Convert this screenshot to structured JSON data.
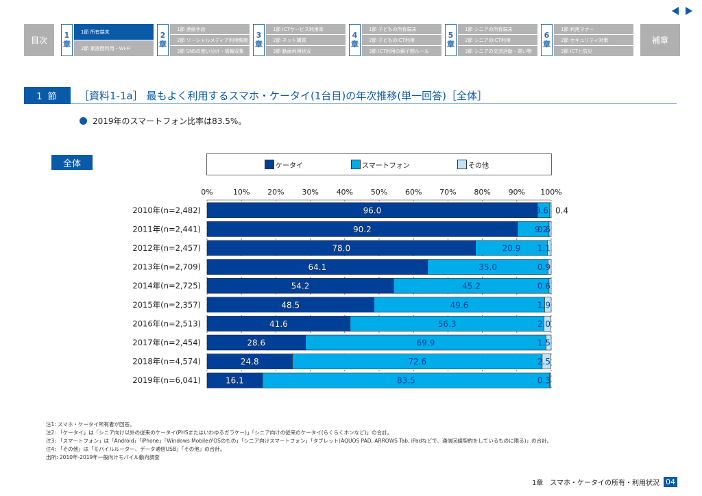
{
  "nav": {
    "toc_label": "目次",
    "appendix_label": "補章",
    "prev_label": "previous-page",
    "next_label": "next-page",
    "chapters": [
      {
        "num": "1",
        "kanji": "章",
        "sections": [
          "1節 所有端末",
          "2節 家族間利用・Wi-Fi"
        ],
        "active": 0
      },
      {
        "num": "2",
        "kanji": "章",
        "sections": [
          "1節 連絡手段",
          "2節 ソーシャルメディア利用頻度",
          "3節 SNSの使い分け・情報収集"
        ]
      },
      {
        "num": "3",
        "kanji": "章",
        "sections": [
          "1節 ICTサービス利用率",
          "2節 ネット購買",
          "3節 動画利用状況"
        ]
      },
      {
        "num": "4",
        "kanji": "章",
        "sections": [
          "1節 子どもの所有端末",
          "2節 子どものICT利用",
          "3節 ICT利用の親子間ルール"
        ]
      },
      {
        "num": "5",
        "kanji": "章",
        "sections": [
          "1節 シニアの所有端末",
          "2節 シニアのICT利用",
          "3節 シニアの交流活動・買い物"
        ]
      },
      {
        "num": "6",
        "kanji": "章",
        "sections": [
          "1節 利用マナー",
          "2節 セキュリティ対策",
          "3節 ICTと防災"
        ]
      }
    ]
  },
  "header": {
    "section_badge": "1 節",
    "title": "［資料1-1a］ 最もよく利用するスマホ・ケータイ(1台目)の年次推移(単一回答)［全体］"
  },
  "bullet": "2019年のスマートフォン比率は83.5%。",
  "group_label": "全体",
  "chart_data": {
    "type": "bar",
    "orientation": "horizontal",
    "stacked": "100%",
    "title": "最もよく利用するスマホ・ケータイ(1台目)の年次推移(単一回答)［全体］",
    "xlabel": "",
    "ylabel": "",
    "xlim": [
      0,
      100
    ],
    "x_ticks": [
      "0%",
      "10%",
      "20%",
      "30%",
      "40%",
      "50%",
      "60%",
      "70%",
      "80%",
      "90%",
      "100%"
    ],
    "legend_position": "top",
    "categories": [
      "2010年(n=2,482)",
      "2011年(n=2,441)",
      "2012年(n=2,457)",
      "2013年(n=2,709)",
      "2014年(n=2,725)",
      "2015年(n=2,357)",
      "2016年(n=2,513)",
      "2017年(n=2,454)",
      "2018年(n=4,574)",
      "2019年(n=6,041)"
    ],
    "series": [
      {
        "name": "ケータイ",
        "color": "#003f98",
        "values": [
          96.0,
          90.2,
          78.0,
          64.1,
          54.2,
          48.5,
          41.6,
          28.6,
          24.8,
          16.1
        ]
      },
      {
        "name": "スマートフォン",
        "color": "#00ace9",
        "values": [
          3.6,
          9.2,
          20.9,
          35.0,
          45.2,
          49.6,
          56.3,
          69.9,
          72.6,
          83.5
        ]
      },
      {
        "name": "その他",
        "color": "#bfe3f8",
        "values": [
          0.4,
          0.6,
          1.1,
          0.9,
          0.6,
          1.9,
          2.0,
          1.5,
          2.5,
          0.3
        ]
      }
    ]
  },
  "notes": [
    "注1: スマホ・ケータイ所有者が回答。",
    "注2: 「ケータイ」は「シニア向け以外の従来のケータイ(PHSまたはいわゆるガラケー)」「シニア向けの従来のケータイ(らくらくホンなど)」の合計。",
    "注3: 「スマートフォン」は「Android」「iPhone」「Windows MobileがOSのもの」「シニア向けスマートフォン」「タブレット(AQUOS PAD, ARROWS Tab, iPadなどで、通信回線契約をしているものに限る)」の合計。",
    "注4: 「その他」は「モバイルルーター、データ通信USB」「その他」の合計。",
    "出所: 2010年-2019年一般向けモバイル動向調査"
  ],
  "footer": {
    "chapter_title": "1章　スマホ・ケータイの所有・利用状況",
    "page": "04"
  }
}
